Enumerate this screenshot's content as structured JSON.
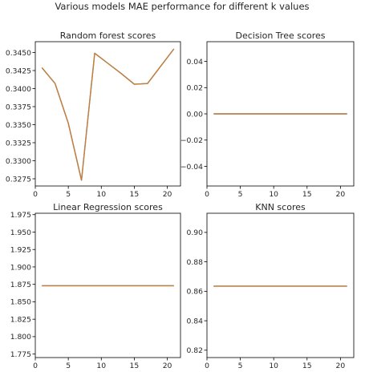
{
  "figure": {
    "suptitle": "Various models MAE performance for different k values"
  },
  "chart_data": [
    {
      "type": "line",
      "title": "Random forest scores",
      "xlabel": "",
      "ylabel": "",
      "xlim": [
        0,
        22
      ],
      "ylim": [
        0.3265,
        0.3465
      ],
      "xticks": [
        0,
        5,
        10,
        15,
        20
      ],
      "xtick_labels": [
        "0",
        "5",
        "10",
        "15",
        "20"
      ],
      "yticks": [
        0.3275,
        0.33,
        0.3325,
        0.335,
        0.3375,
        0.34,
        0.3425,
        0.345
      ],
      "ytick_labels": [
        "0.3275",
        "0.3300",
        "0.3325",
        "0.3350",
        "0.3375",
        "0.3400",
        "0.3425",
        "0.3450"
      ],
      "grid": false,
      "series": [
        {
          "color": "#1f77b4",
          "x": [
            1,
            3,
            5,
            7,
            9,
            11,
            13,
            15,
            17,
            19,
            21
          ],
          "y": [
            0.3429,
            0.3407,
            0.3352,
            0.3273,
            0.3449,
            0.3435,
            0.3421,
            0.3406,
            0.3407,
            0.3431,
            0.3455
          ]
        },
        {
          "color": "#ff7f0e",
          "x": [
            1,
            3,
            5,
            7,
            9,
            11,
            13,
            15,
            17,
            19,
            21
          ],
          "y": [
            0.3429,
            0.3407,
            0.3352,
            0.3273,
            0.3449,
            0.3435,
            0.3421,
            0.3406,
            0.3407,
            0.3431,
            0.3455
          ]
        }
      ]
    },
    {
      "type": "line",
      "title": "Decision Tree scores",
      "xlabel": "",
      "ylabel": "",
      "xlim": [
        0,
        22
      ],
      "ylim": [
        -0.055,
        0.055
      ],
      "xticks": [
        0,
        5,
        10,
        15,
        20
      ],
      "xtick_labels": [
        "0",
        "5",
        "10",
        "15",
        "20"
      ],
      "yticks": [
        -0.04,
        -0.02,
        0.0,
        0.02,
        0.04
      ],
      "ytick_labels": [
        "−0.04",
        "−0.02",
        "0.00",
        "0.02",
        "0.04"
      ],
      "grid": false,
      "series": [
        {
          "color": "#1f77b4",
          "x": [
            1,
            3,
            5,
            7,
            9,
            11,
            13,
            15,
            17,
            19,
            21
          ],
          "y": [
            0,
            0,
            0,
            0,
            0,
            0,
            0,
            0,
            0,
            0,
            0
          ]
        },
        {
          "color": "#ff7f0e",
          "x": [
            1,
            3,
            5,
            7,
            9,
            11,
            13,
            15,
            17,
            19,
            21
          ],
          "y": [
            0,
            0,
            0,
            0,
            0,
            0,
            0,
            0,
            0,
            0,
            0
          ]
        }
      ]
    },
    {
      "type": "line",
      "title": "Linear Regression scores",
      "xlabel": "",
      "ylabel": "",
      "xlim": [
        0,
        22
      ],
      "ylim": [
        1.77,
        1.977
      ],
      "xticks": [
        0,
        5,
        10,
        15,
        20
      ],
      "xtick_labels": [
        "0",
        "5",
        "10",
        "15",
        "20"
      ],
      "yticks": [
        1.775,
        1.8,
        1.825,
        1.85,
        1.875,
        1.9,
        1.925,
        1.95,
        1.975
      ],
      "ytick_labels": [
        "1.775",
        "1.800",
        "1.825",
        "1.850",
        "1.875",
        "1.900",
        "1.925",
        "1.950",
        "1.975"
      ],
      "grid": false,
      "series": [
        {
          "color": "#1f77b4",
          "x": [
            1,
            3,
            5,
            7,
            9,
            11,
            13,
            15,
            17,
            19,
            21
          ],
          "y": [
            1.873,
            1.873,
            1.873,
            1.873,
            1.873,
            1.873,
            1.873,
            1.873,
            1.873,
            1.873,
            1.873
          ]
        },
        {
          "color": "#ff7f0e",
          "x": [
            1,
            3,
            5,
            7,
            9,
            11,
            13,
            15,
            17,
            19,
            21
          ],
          "y": [
            1.873,
            1.873,
            1.873,
            1.873,
            1.873,
            1.873,
            1.873,
            1.873,
            1.873,
            1.873,
            1.873
          ]
        }
      ]
    },
    {
      "type": "line",
      "title": "KNN scores",
      "xlabel": "",
      "ylabel": "",
      "xlim": [
        0,
        22
      ],
      "ylim": [
        0.815,
        0.913
      ],
      "xticks": [
        0,
        5,
        10,
        15,
        20
      ],
      "xtick_labels": [
        "0",
        "5",
        "10",
        "15",
        "20"
      ],
      "yticks": [
        0.82,
        0.84,
        0.86,
        0.88,
        0.9
      ],
      "ytick_labels": [
        "0.82",
        "0.84",
        "0.86",
        "0.88",
        "0.90"
      ],
      "grid": false,
      "series": [
        {
          "color": "#1f77b4",
          "x": [
            1,
            3,
            5,
            7,
            9,
            11,
            13,
            15,
            17,
            19,
            21
          ],
          "y": [
            0.8635,
            0.8635,
            0.8635,
            0.8635,
            0.8635,
            0.8635,
            0.8635,
            0.8635,
            0.8635,
            0.8635,
            0.8635
          ]
        },
        {
          "color": "#ff7f0e",
          "x": [
            1,
            3,
            5,
            7,
            9,
            11,
            13,
            15,
            17,
            19,
            21
          ],
          "y": [
            0.8635,
            0.8635,
            0.8635,
            0.8635,
            0.8635,
            0.8635,
            0.8635,
            0.8635,
            0.8635,
            0.8635,
            0.8635
          ]
        }
      ]
    }
  ]
}
